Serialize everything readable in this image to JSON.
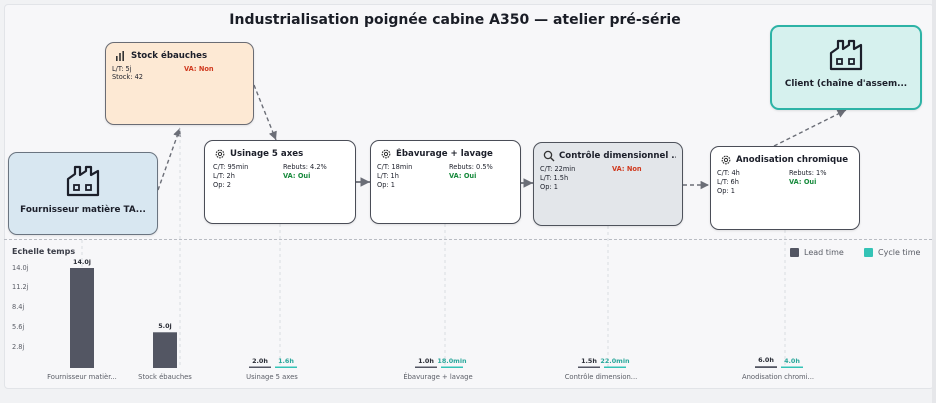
{
  "title": "Industrialisation poignée cabine A350 — atelier pré-série",
  "colors": {
    "lead": "#535663",
    "cycle": "#34c3b6",
    "va_oui": "#178a3c",
    "va_non": "#d0391e",
    "client_border": "#2db3a6"
  },
  "nodes": {
    "stock": {
      "icon": "bar-chart-icon",
      "label": "Stock ébauches",
      "lt": "L/T: 5j",
      "va": "VA: Non",
      "stock": "Stock: 42"
    },
    "supplier": {
      "icon": "factory-icon",
      "label": "Fournisseur matière TA..."
    },
    "usinage": {
      "icon": "gear-icon",
      "label": "Usinage 5 axes",
      "ct": "C/T: 95min",
      "rebuts": "Rebuts: 4.2%",
      "lt": "L/T: 2h",
      "va": "VA: Oui",
      "op": "Op: 2"
    },
    "ebavurage": {
      "icon": "gear-icon",
      "label": "Ébavurage + lavage",
      "ct": "C/T: 18min",
      "rebuts": "Rebuts: 0.5%",
      "lt": "L/T: 1h",
      "va": "VA: Oui",
      "op": "Op: 1"
    },
    "controle": {
      "icon": "magnifier-icon",
      "label": "Contrôle dimensionnel ...",
      "ct": "C/T: 22min",
      "va": "VA: Non",
      "lt": "L/T: 1.5h",
      "op": "Op: 1"
    },
    "anodisation": {
      "icon": "gear-icon",
      "label": "Anodisation chromique",
      "ct": "C/T: 4h",
      "rebuts": "Rebuts: 1%",
      "lt": "L/T: 6h",
      "va": "VA: Oui",
      "op": "Op: 1"
    },
    "client": {
      "icon": "factory-icon",
      "label": "Client (chaîne d'assem..."
    }
  },
  "chart_data": {
    "type": "bar",
    "title": "Echelle temps",
    "categories": [
      "Fournisseur matièr...",
      "Stock ébauches",
      "Usinage 5 axes",
      "Ébavurage + lavage",
      "Contrôle dimension...",
      "Anodisation chromi..."
    ],
    "series": [
      {
        "name": "Lead time",
        "values_days": [
          14.0,
          5.0,
          0.0833,
          0.0417,
          0.0625,
          0.25
        ],
        "labels": [
          "14.0j",
          "5.0j",
          "2.0h",
          "1.0h",
          "1.5h",
          "6.0h"
        ]
      },
      {
        "name": "Cycle time",
        "values_days": [
          null,
          null,
          0.0667,
          0.0125,
          0.0153,
          0.1667
        ],
        "labels": [
          "",
          "",
          "1.6h",
          "18.0min",
          "22.0min",
          "4.0h"
        ]
      }
    ],
    "yticks": [
      "14.0j",
      "11.2j",
      "8.4j",
      "5.6j",
      "2.8j"
    ],
    "ylim": [
      0,
      14.0
    ],
    "legend": {
      "lead": "Lead time",
      "cycle": "Cycle time",
      "position": "top-right"
    }
  }
}
